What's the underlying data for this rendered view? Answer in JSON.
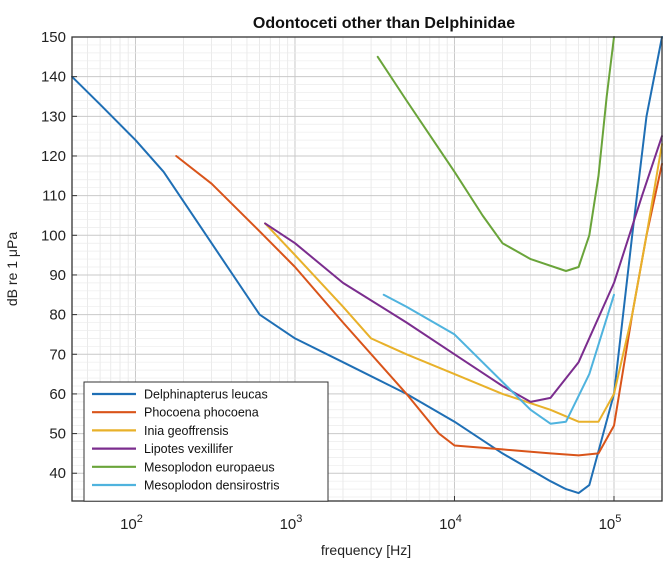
{
  "chart_data": {
    "type": "line",
    "title": "Odontoceti other than Delphinidae",
    "xlabel": "frequency [Hz]",
    "ylabel": "dB re 1 μPa",
    "xscale": "log",
    "xlim": [
      40,
      200000
    ],
    "ylim": [
      33,
      150
    ],
    "yticks": [
      40,
      50,
      60,
      70,
      80,
      90,
      100,
      110,
      120,
      130,
      140,
      150
    ],
    "xticks": [
      {
        "base": "10",
        "exp": "2",
        "value": 100
      },
      {
        "base": "10",
        "exp": "3",
        "value": 1000
      },
      {
        "base": "10",
        "exp": "4",
        "value": 10000
      },
      {
        "base": "10",
        "exp": "5",
        "value": 100000
      }
    ],
    "grid": true,
    "legend_position": "bottom-left",
    "series": [
      {
        "name": "Delphinapterus leucas",
        "color": "#1f6fb5",
        "x": [
          40,
          60,
          100,
          150,
          300,
          600,
          1000,
          2000,
          5000,
          10000,
          20000,
          40000,
          50000,
          60000,
          70000,
          100000,
          130000,
          160000,
          200000
        ],
        "y": [
          140,
          133,
          124,
          116,
          98,
          80,
          74,
          68,
          60,
          53,
          45,
          38,
          36,
          35,
          37,
          60,
          100,
          130,
          150
        ]
      },
      {
        "name": "Phocoena phocoena",
        "color": "#d9541a",
        "x": [
          180,
          300,
          600,
          1000,
          2000,
          5000,
          8000,
          10000,
          20000,
          40000,
          60000,
          80000,
          100000,
          130000,
          160000,
          200000
        ],
        "y": [
          120,
          113,
          101,
          92,
          78,
          60,
          50,
          47,
          46,
          45,
          44.5,
          45,
          52,
          80,
          100,
          118
        ]
      },
      {
        "name": "Inia geoffrensis",
        "color": "#e8b12a",
        "x": [
          650,
          1000,
          2000,
          3000,
          5000,
          10000,
          20000,
          40000,
          60000,
          80000,
          100000,
          130000,
          160000,
          200000
        ],
        "y": [
          103,
          95,
          82,
          74,
          70,
          65,
          60,
          56,
          53,
          53,
          60,
          80,
          100,
          123
        ]
      },
      {
        "name": "Lipotes vexillifer",
        "color": "#7b2d8e",
        "x": [
          650,
          1000,
          2000,
          5000,
          10000,
          20000,
          30000,
          40000,
          60000,
          100000,
          150000,
          200000
        ],
        "y": [
          103,
          98,
          88,
          78,
          70,
          62,
          58,
          59,
          68,
          88,
          110,
          125
        ]
      },
      {
        "name": "Mesoplodon europaeus",
        "color": "#6aa43a",
        "x": [
          3300,
          5000,
          10000,
          15000,
          20000,
          30000,
          50000,
          60000,
          70000,
          80000,
          90000,
          100000
        ],
        "y": [
          145,
          134,
          116,
          105,
          98,
          94,
          91,
          92,
          100,
          115,
          135,
          150
        ]
      },
      {
        "name": "Mesoplodon densirostris",
        "color": "#4fb3de",
        "x": [
          3600,
          5000,
          10000,
          20000,
          30000,
          40000,
          50000,
          70000,
          100000
        ],
        "y": [
          85,
          82,
          75,
          63,
          56,
          52.5,
          53,
          65,
          85
        ]
      }
    ]
  }
}
